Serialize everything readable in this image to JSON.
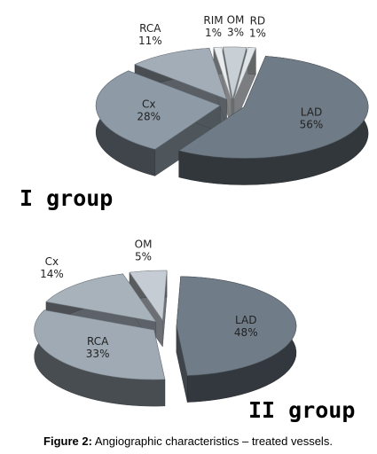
{
  "chart_data": [
    {
      "type": "pie3d",
      "title": "I group",
      "categories": [
        "LAD",
        "Cx",
        "RCA",
        "RIM",
        "OM",
        "RD"
      ],
      "values": [
        56,
        28,
        11,
        1,
        3,
        1
      ],
      "value_labels": [
        "56%",
        "28%",
        "11%",
        "1%",
        "3%",
        "1%"
      ],
      "colors": [
        "#6f7b86",
        "#8e9aa6",
        "#a3adb8",
        "#e8ecef",
        "#c8d0d6",
        "#dfe4e8"
      ]
    },
    {
      "type": "pie3d",
      "title": "II group",
      "categories": [
        "LAD",
        "RCA",
        "Cx",
        "OM"
      ],
      "values": [
        48,
        33,
        14,
        5
      ],
      "value_labels": [
        "48%",
        "33%",
        "14%",
        "5%"
      ],
      "colors": [
        "#707c87",
        "#a0aab4",
        "#a8b2bb",
        "#c5ccd3"
      ]
    }
  ],
  "caption": {
    "label": "Figure 2:",
    "text": "Angiographic characteristics – treated vessels."
  }
}
